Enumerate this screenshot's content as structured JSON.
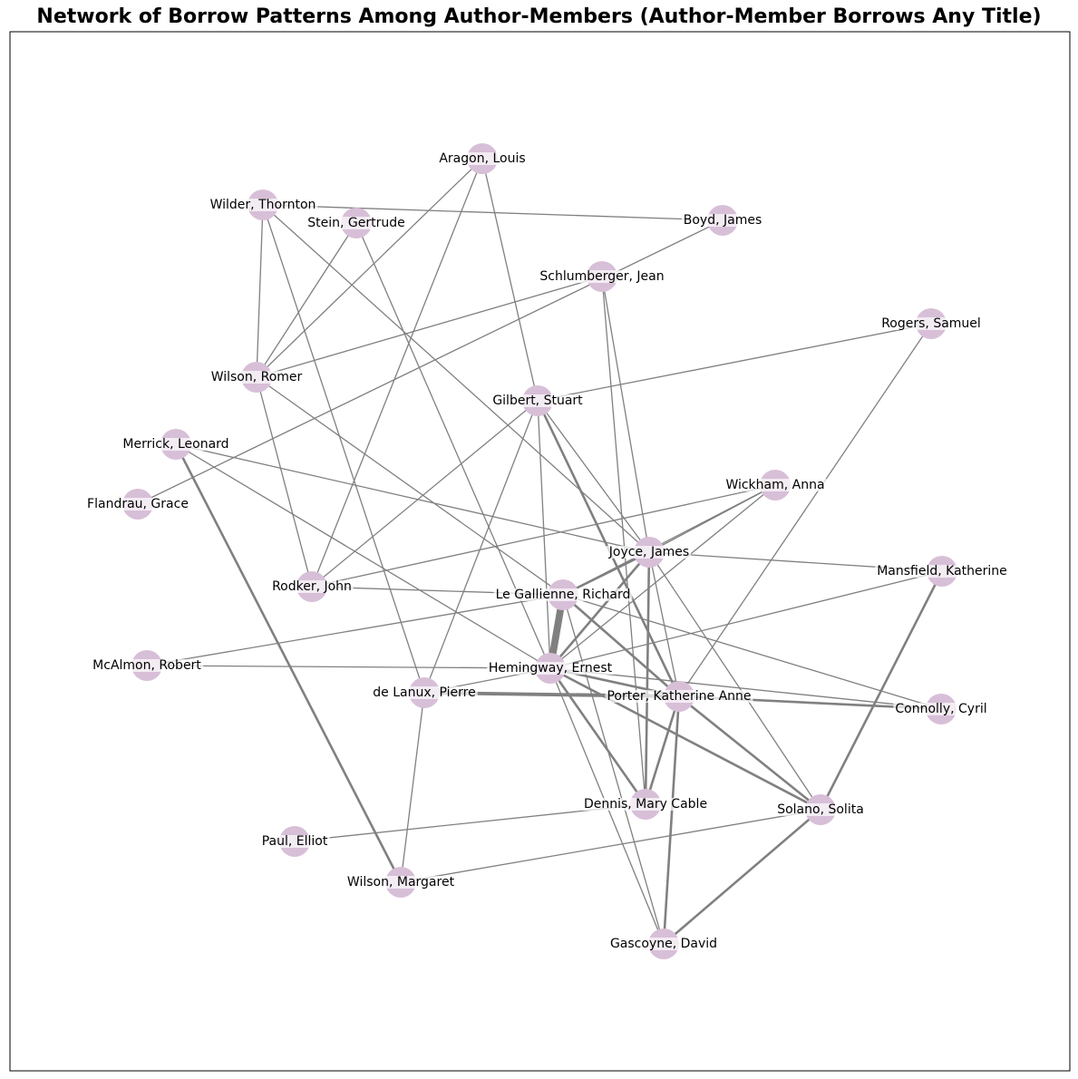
{
  "title": "Network of Borrow Patterns Among Author-Members (Author-Member Borrows Any Title)",
  "colors": {
    "node": "#d8bfd8",
    "edge": "#808080",
    "label_bg": "#ffffff",
    "frame": "#000000"
  },
  "chart_data": {
    "type": "network",
    "nodes": [
      "Aragon, Louis",
      "Wilder, Thornton",
      "Stein, Gertrude",
      "Boyd, James",
      "Schlumberger, Jean",
      "Rogers, Samuel",
      "Wilson, Romer",
      "Gilbert, Stuart",
      "Merrick, Leonard",
      "Flandrau, Grace",
      "Wickham, Anna",
      "Joyce, James",
      "Mansfield, Katherine",
      "Rodker, John",
      "Le Gallienne, Richard",
      "McAlmon, Robert",
      "Hemingway, Ernest",
      "de Lanux, Pierre",
      "Porter, Katherine Anne",
      "Connolly, Cyril",
      "Dennis, Mary Cable",
      "Solano, Solita",
      "Paul, Elliot",
      "Wilson, Margaret",
      "Gascoyne, David"
    ],
    "edges": [
      {
        "source": "Wilder, Thornton",
        "target": "Boyd, James",
        "weight": 1
      },
      {
        "source": "Wilder, Thornton",
        "target": "Wilson, Romer",
        "weight": 1
      },
      {
        "source": "Wilder, Thornton",
        "target": "de Lanux, Pierre",
        "weight": 1
      },
      {
        "source": "Wilder, Thornton",
        "target": "Joyce, James",
        "weight": 1
      },
      {
        "source": "Stein, Gertrude",
        "target": "Wilson, Romer",
        "weight": 1
      },
      {
        "source": "Stein, Gertrude",
        "target": "Hemingway, Ernest",
        "weight": 1
      },
      {
        "source": "Aragon, Louis",
        "target": "Wilson, Romer",
        "weight": 1
      },
      {
        "source": "Aragon, Louis",
        "target": "Rodker, John",
        "weight": 1
      },
      {
        "source": "Aragon, Louis",
        "target": "Gilbert, Stuart",
        "weight": 1
      },
      {
        "source": "Boyd, James",
        "target": "Flandrau, Grace",
        "weight": 1
      },
      {
        "source": "Schlumberger, Jean",
        "target": "Wilson, Romer",
        "weight": 1
      },
      {
        "source": "Schlumberger, Jean",
        "target": "Joyce, James",
        "weight": 1
      },
      {
        "source": "Schlumberger, Jean",
        "target": "Dennis, Mary Cable",
        "weight": 1
      },
      {
        "source": "Rogers, Samuel",
        "target": "Gilbert, Stuart",
        "weight": 1
      },
      {
        "source": "Rogers, Samuel",
        "target": "Porter, Katherine Anne",
        "weight": 1
      },
      {
        "source": "Wilson, Romer",
        "target": "Rodker, John",
        "weight": 1
      },
      {
        "source": "Wilson, Romer",
        "target": "Le Gallienne, Richard",
        "weight": 1
      },
      {
        "source": "Gilbert, Stuart",
        "target": "Rodker, John",
        "weight": 1
      },
      {
        "source": "Gilbert, Stuart",
        "target": "de Lanux, Pierre",
        "weight": 1
      },
      {
        "source": "Gilbert, Stuart",
        "target": "Hemingway, Ernest",
        "weight": 1
      },
      {
        "source": "Gilbert, Stuart",
        "target": "Joyce, James",
        "weight": 1
      },
      {
        "source": "Gilbert, Stuart",
        "target": "Porter, Katherine Anne",
        "weight": 2
      },
      {
        "source": "Merrick, Leonard",
        "target": "Joyce, James",
        "weight": 1
      },
      {
        "source": "Merrick, Leonard",
        "target": "Hemingway, Ernest",
        "weight": 1
      },
      {
        "source": "Merrick, Leonard",
        "target": "Wilson, Margaret",
        "weight": 2
      },
      {
        "source": "Wickham, Anna",
        "target": "Rodker, John",
        "weight": 1
      },
      {
        "source": "Wickham, Anna",
        "target": "Joyce, James",
        "weight": 1
      },
      {
        "source": "Wickham, Anna",
        "target": "Le Gallienne, Richard",
        "weight": 1
      },
      {
        "source": "Wickham, Anna",
        "target": "Hemingway, Ernest",
        "weight": 1
      },
      {
        "source": "Joyce, James",
        "target": "Mansfield, Katherine",
        "weight": 1
      },
      {
        "source": "Joyce, James",
        "target": "Le Gallienne, Richard",
        "weight": 2
      },
      {
        "source": "Joyce, James",
        "target": "Hemingway, Ernest",
        "weight": 2
      },
      {
        "source": "Joyce, James",
        "target": "Porter, Katherine Anne",
        "weight": 1
      },
      {
        "source": "Joyce, James",
        "target": "Dennis, Mary Cable",
        "weight": 2
      },
      {
        "source": "Joyce, James",
        "target": "Solano, Solita",
        "weight": 1
      },
      {
        "source": "Mansfield, Katherine",
        "target": "Hemingway, Ernest",
        "weight": 1
      },
      {
        "source": "Mansfield, Katherine",
        "target": "Solano, Solita",
        "weight": 2
      },
      {
        "source": "Rodker, John",
        "target": "Le Gallienne, Richard",
        "weight": 1
      },
      {
        "source": "Le Gallienne, Richard",
        "target": "McAlmon, Robert",
        "weight": 1
      },
      {
        "source": "Le Gallienne, Richard",
        "target": "Hemingway, Ernest",
        "weight": 6
      },
      {
        "source": "Le Gallienne, Richard",
        "target": "Porter, Katherine Anne",
        "weight": 2
      },
      {
        "source": "Le Gallienne, Richard",
        "target": "Connolly, Cyril",
        "weight": 1
      },
      {
        "source": "Le Gallienne, Richard",
        "target": "Gascoyne, David",
        "weight": 1
      },
      {
        "source": "McAlmon, Robert",
        "target": "Hemingway, Ernest",
        "weight": 1
      },
      {
        "source": "Hemingway, Ernest",
        "target": "de Lanux, Pierre",
        "weight": 1
      },
      {
        "source": "Hemingway, Ernest",
        "target": "Porter, Katherine Anne",
        "weight": 2
      },
      {
        "source": "Hemingway, Ernest",
        "target": "Connolly, Cyril",
        "weight": 1
      },
      {
        "source": "Hemingway, Ernest",
        "target": "Dennis, Mary Cable",
        "weight": 2
      },
      {
        "source": "Hemingway, Ernest",
        "target": "Solano, Solita",
        "weight": 2
      },
      {
        "source": "Hemingway, Ernest",
        "target": "Gascoyne, David",
        "weight": 1
      },
      {
        "source": "de Lanux, Pierre",
        "target": "Porter, Katherine Anne",
        "weight": 3
      },
      {
        "source": "de Lanux, Pierre",
        "target": "Wilson, Margaret",
        "weight": 1
      },
      {
        "source": "Porter, Katherine Anne",
        "target": "Connolly, Cyril",
        "weight": 2
      },
      {
        "source": "Porter, Katherine Anne",
        "target": "Dennis, Mary Cable",
        "weight": 2
      },
      {
        "source": "Porter, Katherine Anne",
        "target": "Solano, Solita",
        "weight": 2
      },
      {
        "source": "Porter, Katherine Anne",
        "target": "Gascoyne, David",
        "weight": 2
      },
      {
        "source": "Dennis, Mary Cable",
        "target": "Paul, Elliot",
        "weight": 1
      },
      {
        "source": "Solano, Solita",
        "target": "Wilson, Margaret",
        "weight": 1
      },
      {
        "source": "Solano, Solita",
        "target": "Gascoyne, David",
        "weight": 2
      }
    ]
  }
}
